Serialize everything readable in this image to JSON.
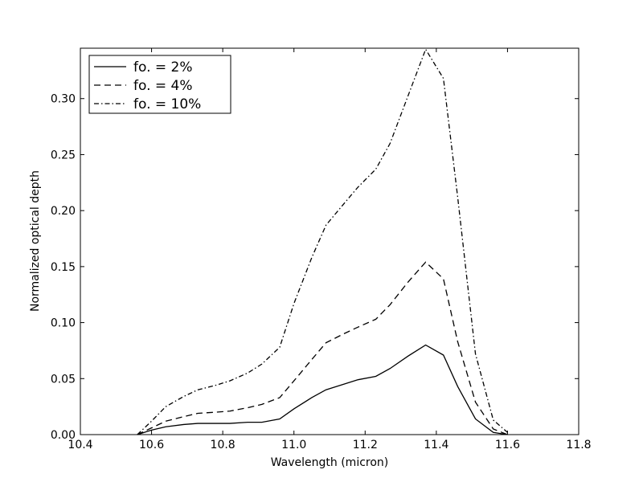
{
  "chart_data": {
    "type": "line",
    "title": "",
    "xlabel": "Wavelength (micron)",
    "ylabel": "Normalized optical depth",
    "xlim": [
      10.4,
      11.8
    ],
    "ylim": [
      0.0,
      0.345
    ],
    "xticks": [
      10.4,
      10.6,
      10.8,
      11.0,
      11.2,
      11.4,
      11.6,
      11.8
    ],
    "xtick_labels": [
      "10.4",
      "10.6",
      "10.8",
      "11.0",
      "11.2",
      "11.4",
      "11.6",
      "11.8"
    ],
    "yticks": [
      0.0,
      0.05,
      0.1,
      0.15,
      0.2,
      0.25,
      0.3
    ],
    "ytick_labels": [
      "0.00",
      "0.05",
      "0.10",
      "0.15",
      "0.20",
      "0.25",
      "0.30"
    ],
    "grid": false,
    "legend_position": "top-left",
    "series": [
      {
        "name": "fo. = 2%",
        "style": "solid",
        "color": "#000000",
        "x": [
          10.56,
          10.6,
          10.64,
          10.69,
          10.73,
          10.78,
          10.82,
          10.87,
          10.91,
          10.96,
          11.0,
          11.05,
          11.09,
          11.14,
          11.18,
          11.23,
          11.27,
          11.32,
          11.37,
          11.42,
          11.46,
          11.51,
          11.56,
          11.6
        ],
        "y": [
          0.0,
          0.004,
          0.007,
          0.009,
          0.01,
          0.01,
          0.01,
          0.011,
          0.011,
          0.014,
          0.023,
          0.033,
          0.04,
          0.045,
          0.049,
          0.052,
          0.059,
          0.07,
          0.08,
          0.071,
          0.043,
          0.014,
          0.002,
          0.0
        ]
      },
      {
        "name": "fo. = 4%",
        "style": "dashed",
        "color": "#000000",
        "x": [
          10.56,
          10.6,
          10.64,
          10.69,
          10.73,
          10.78,
          10.82,
          10.87,
          10.91,
          10.96,
          11.0,
          11.05,
          11.09,
          11.14,
          11.18,
          11.23,
          11.27,
          11.32,
          11.37,
          11.42,
          11.46,
          11.51,
          11.56,
          11.6
        ],
        "y": [
          0.0,
          0.006,
          0.012,
          0.016,
          0.019,
          0.02,
          0.021,
          0.024,
          0.027,
          0.033,
          0.048,
          0.067,
          0.082,
          0.09,
          0.096,
          0.103,
          0.116,
          0.136,
          0.154,
          0.139,
          0.083,
          0.029,
          0.005,
          0.0
        ]
      },
      {
        "name": "fo. = 10%",
        "style": "dashdot",
        "color": "#000000",
        "x": [
          10.56,
          10.6,
          10.64,
          10.69,
          10.73,
          10.78,
          10.82,
          10.87,
          10.91,
          10.96,
          11.0,
          11.05,
          11.09,
          11.14,
          11.18,
          11.23,
          11.27,
          11.32,
          11.37,
          11.42,
          11.46,
          11.51,
          11.56,
          11.6
        ],
        "y": [
          0.0,
          0.012,
          0.025,
          0.034,
          0.04,
          0.044,
          0.048,
          0.055,
          0.063,
          0.078,
          0.117,
          0.158,
          0.187,
          0.206,
          0.221,
          0.237,
          0.26,
          0.302,
          0.344,
          0.318,
          0.212,
          0.072,
          0.013,
          0.002
        ]
      }
    ]
  }
}
